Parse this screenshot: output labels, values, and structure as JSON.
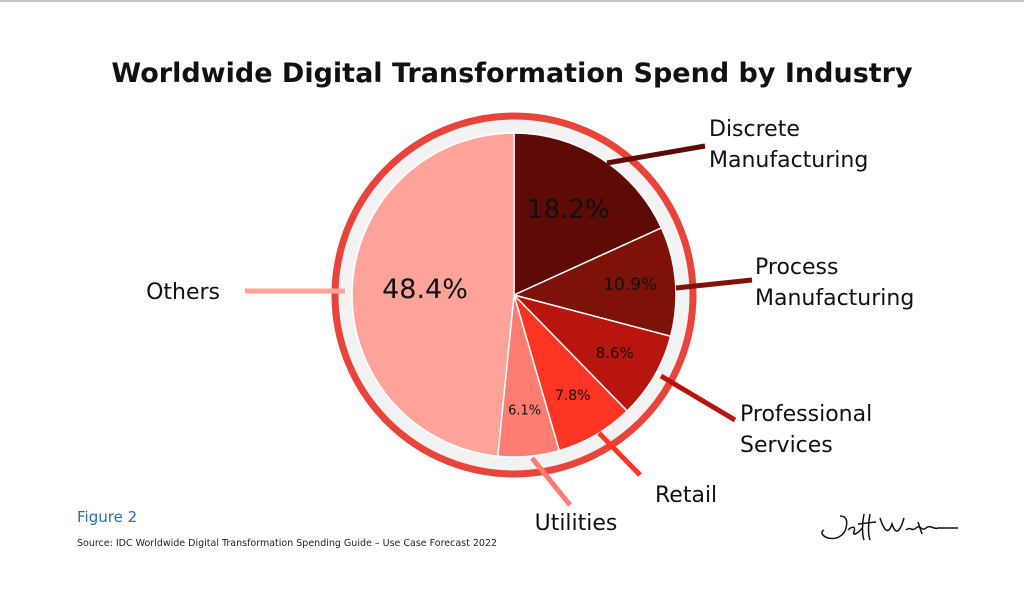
{
  "title": "Worldwide Digital Transformation Spend by Industry",
  "figure_label": "Figure 2",
  "source": "Source: IDC Worldwide Digital Transformation Spending Guide – Use Case Forecast 2022",
  "chart_data": {
    "type": "pie",
    "title": "Worldwide Digital Transformation Spend by Industry",
    "unit": "%",
    "start_angle": "12 o'clock",
    "direction": "clockwise",
    "slices": [
      {
        "label": "Discrete Manufacturing",
        "value": 18.2,
        "value_label": "18.2%",
        "color": "#5e0a06"
      },
      {
        "label": "Process Manufacturing",
        "value": 10.9,
        "value_label": "10.9%",
        "color": "#7e1208"
      },
      {
        "label": "Professional Services",
        "value": 8.6,
        "value_label": "8.6%",
        "color": "#b8150e"
      },
      {
        "label": "Retail",
        "value": 7.8,
        "value_label": "7.8%",
        "color": "#ff3524"
      },
      {
        "label": "Utilities",
        "value": 6.1,
        "value_label": "6.1%",
        "color": "#ff7d72"
      },
      {
        "label": "Others",
        "value": 48.4,
        "value_label": "48.4%",
        "color": "#ffa39a"
      }
    ]
  }
}
